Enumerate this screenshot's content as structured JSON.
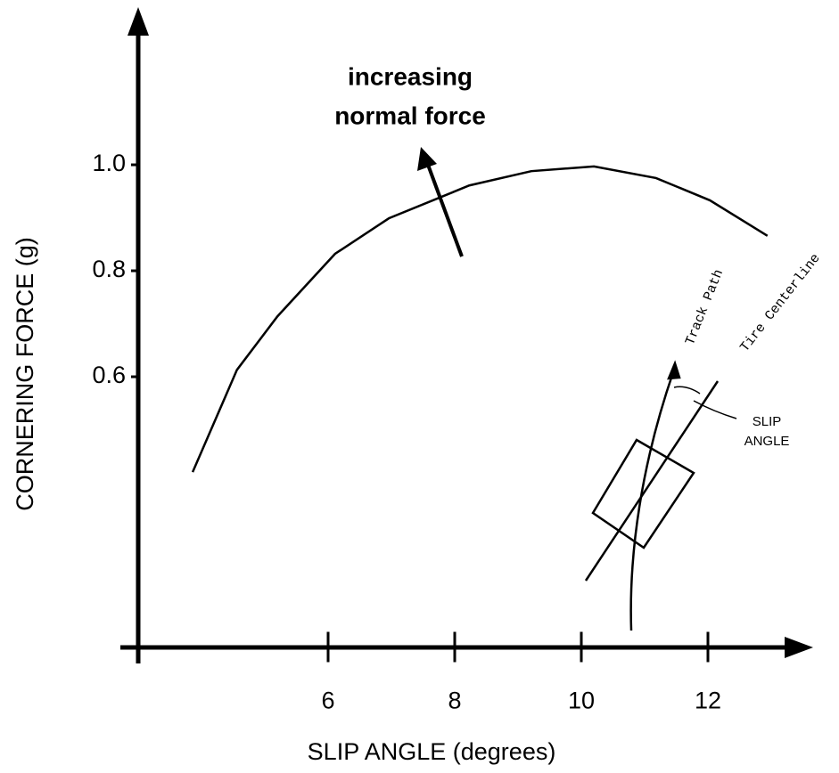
{
  "chart_data": {
    "type": "line",
    "x_label": "SLIP ANGLE  (degrees)",
    "y_label": "CORNERING FORCE  (g)",
    "annotation": [
      "increasing",
      "normal force"
    ],
    "diagram_labels": {
      "track": "Track Path",
      "tire": "Tire Centerline",
      "slip": [
        "SLIP",
        "ANGLE"
      ]
    },
    "x": [
      3.86,
      4.56,
      5.2,
      6.11,
      6.96,
      8.23,
      9.21,
      10.2,
      11.18,
      12.03,
      12.94
    ],
    "series": [
      {
        "color": "#000000",
        "values": [
          0.42,
          0.613,
          0.714,
          0.832,
          0.899,
          0.961,
          0.988,
          0.997,
          0.975,
          0.933,
          0.866
        ]
      }
    ],
    "xlim": [
      3,
      13.6
    ],
    "ylim": [
      0.09,
      1.29
    ],
    "xticks": [
      6,
      8,
      10,
      12
    ],
    "yticks": [
      {
        "value": 0.6,
        "label": "0.6"
      },
      {
        "value": 0.8,
        "label": "0.8"
      },
      {
        "value": 1.0,
        "label": "1.0"
      }
    ],
    "grid": false
  }
}
